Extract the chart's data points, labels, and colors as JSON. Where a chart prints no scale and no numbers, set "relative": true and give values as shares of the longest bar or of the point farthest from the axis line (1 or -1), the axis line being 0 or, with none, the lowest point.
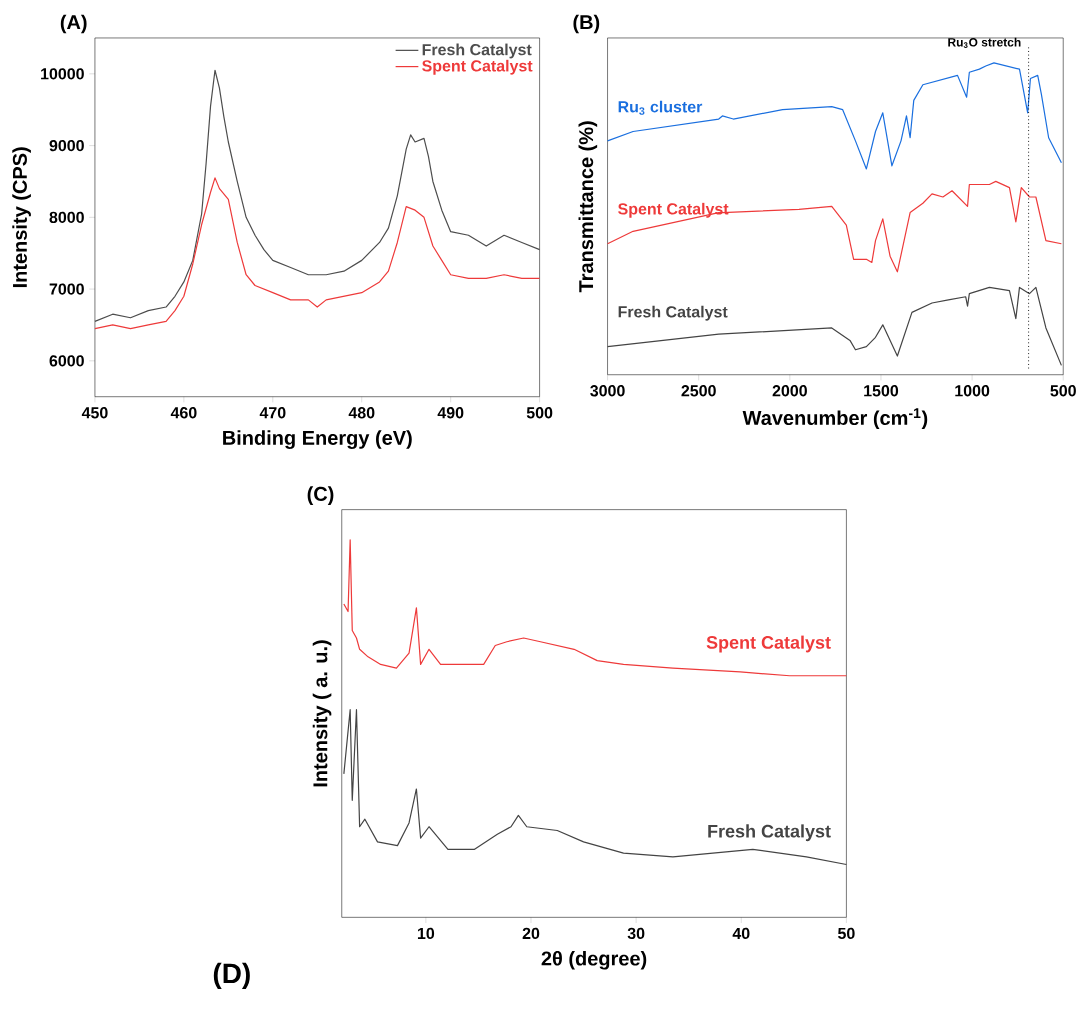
{
  "chart_data": [
    {
      "type": "line",
      "title": "(A)",
      "xlabel": "Binding Energy (eV)",
      "ylabel": "Intensity (CPS)",
      "xlim": [
        450,
        500
      ],
      "xticks": [
        450,
        460,
        470,
        480,
        490,
        500
      ],
      "ylim": [
        5500,
        10500
      ],
      "yticks": [
        6000,
        7000,
        8000,
        9000,
        10000
      ],
      "legend": "top right",
      "series": [
        {
          "name": "Fresh Catalyst",
          "color": "#4d4d4d",
          "x": [
            450,
            452,
            454,
            456,
            458,
            459,
            460,
            461,
            462,
            462.5,
            463,
            463.5,
            464,
            464.5,
            465,
            466,
            467,
            468,
            469,
            470,
            472,
            474,
            476,
            478,
            480,
            482,
            483,
            484,
            485,
            485.5,
            486,
            487,
            487.5,
            488,
            489,
            490,
            492,
            494,
            496,
            498,
            500
          ],
          "values": [
            6550,
            6650,
            6600,
            6700,
            6750,
            6900,
            7100,
            7400,
            8050,
            8750,
            9550,
            10050,
            9800,
            9400,
            9050,
            8500,
            8000,
            7750,
            7550,
            7400,
            7300,
            7200,
            7200,
            7250,
            7400,
            7650,
            7850,
            8300,
            8950,
            9150,
            9050,
            9100,
            8850,
            8500,
            8100,
            7800,
            7750,
            7600,
            7750,
            7650,
            7550
          ]
        },
        {
          "name": "Spent Catalyst",
          "color": "#ee3a3a",
          "x": [
            450,
            452,
            454,
            456,
            458,
            459,
            460,
            461,
            462,
            463,
            463.5,
            464,
            465,
            466,
            467,
            468,
            470,
            472,
            474,
            475,
            476,
            478,
            480,
            482,
            483,
            484,
            485,
            486,
            487,
            488,
            489,
            490,
            492,
            494,
            496,
            498,
            500
          ],
          "values": [
            6450,
            6500,
            6450,
            6500,
            6550,
            6700,
            6900,
            7350,
            7900,
            8350,
            8550,
            8400,
            8250,
            7650,
            7200,
            7050,
            6950,
            6850,
            6850,
            6750,
            6850,
            6900,
            6950,
            7100,
            7250,
            7650,
            8150,
            8100,
            8000,
            7600,
            7400,
            7200,
            7150,
            7150,
            7200,
            7150,
            7150
          ]
        }
      ]
    },
    {
      "type": "line",
      "title": "(B)",
      "xlabel": "Wavenumber (cm$^{-1}$)",
      "ylabel": "Transmittance (%)",
      "xlim": [
        3000,
        500
      ],
      "xticks": [
        3000,
        2500,
        2000,
        1500,
        1000,
        500
      ],
      "relative": true,
      "ref_lines": [
        {
          "axis": "x",
          "value": 690,
          "label": "Ru$_{3}$O stretch",
          "line_style": "dotted",
          "color": "#000000"
        }
      ],
      "series": [
        {
          "name": "Ru$_{3}$ cluster",
          "color": "#1a6fdf",
          "x": [
            3000,
            2860,
            2390,
            2370,
            2310,
            2040,
            1770,
            1710,
            1640,
            1580,
            1530,
            1490,
            1440,
            1390,
            1360,
            1340,
            1320,
            1270,
            1080,
            1030,
            1015,
            960,
            925,
            880,
            740,
            695,
            680,
            640,
            620,
            580,
            510
          ],
          "values": [
            0.75,
            0.78,
            0.82,
            0.83,
            0.82,
            0.85,
            0.86,
            0.85,
            0.75,
            0.66,
            0.78,
            0.84,
            0.67,
            0.75,
            0.83,
            0.76,
            0.88,
            0.93,
            0.96,
            0.89,
            0.97,
            0.98,
            0.99,
            1.0,
            0.98,
            0.84,
            0.95,
            0.96,
            0.9,
            0.76,
            0.68
          ]
        },
        {
          "name": "Spent Catalyst",
          "color": "#ee3a3a",
          "x": [
            3000,
            2860,
            2390,
            2370,
            1950,
            1770,
            1690,
            1650,
            1580,
            1550,
            1530,
            1490,
            1450,
            1410,
            1340,
            1270,
            1220,
            1160,
            1110,
            1025,
            1015,
            905,
            870,
            795,
            760,
            730,
            685,
            650,
            595,
            510
          ],
          "values": [
            0.42,
            0.46,
            0.52,
            0.52,
            0.53,
            0.54,
            0.48,
            0.37,
            0.37,
            0.36,
            0.43,
            0.5,
            0.38,
            0.33,
            0.52,
            0.55,
            0.58,
            0.57,
            0.59,
            0.54,
            0.61,
            0.61,
            0.62,
            0.6,
            0.49,
            0.6,
            0.57,
            0.57,
            0.43,
            0.42
          ]
        },
        {
          "name": "Fresh Catalyst",
          "color": "#444444",
          "x": [
            3000,
            2390,
            1770,
            1670,
            1640,
            1580,
            1530,
            1490,
            1450,
            1410,
            1330,
            1220,
            1130,
            1035,
            1025,
            1015,
            905,
            795,
            760,
            740,
            685,
            650,
            595,
            510
          ],
          "values": [
            0.09,
            0.13,
            0.15,
            0.11,
            0.08,
            0.09,
            0.12,
            0.16,
            0.11,
            0.06,
            0.2,
            0.23,
            0.24,
            0.25,
            0.22,
            0.26,
            0.28,
            0.27,
            0.18,
            0.28,
            0.26,
            0.28,
            0.15,
            0.03
          ]
        }
      ]
    },
    {
      "type": "line",
      "title": "(C)",
      "xlabel": "2θ (degree)",
      "ylabel": "Intensity ( a. u.)",
      "xlim": [
        2,
        50
      ],
      "xticks": [
        10,
        20,
        30,
        40,
        50
      ],
      "relative": true,
      "annotations": [
        "(D)"
      ],
      "series": [
        {
          "name": "Spent Catalyst",
          "color": "#ee3a3a",
          "x": [
            2.2,
            2.6,
            2.8,
            3.0,
            3.4,
            3.7,
            4.5,
            5.7,
            7.2,
            8.4,
            9.1,
            9.5,
            10.3,
            11.4,
            13,
            15.5,
            16.6,
            17.7,
            19.3,
            20.9,
            24.1,
            26.3,
            28.8,
            33.5,
            39.9,
            44.6,
            50
          ],
          "values": [
            0.83,
            0.81,
            1.0,
            0.76,
            0.74,
            0.71,
            0.69,
            0.67,
            0.66,
            0.7,
            0.82,
            0.67,
            0.71,
            0.67,
            0.67,
            0.67,
            0.72,
            0.73,
            0.74,
            0.73,
            0.71,
            0.68,
            0.67,
            0.66,
            0.65,
            0.64,
            0.64
          ]
        },
        {
          "name": "Fresh Catalyst",
          "color": "#444444",
          "x": [
            2.2,
            2.8,
            3.0,
            3.4,
            3.7,
            4.2,
            5.4,
            7.3,
            8.4,
            9.1,
            9.5,
            10.3,
            12.1,
            14.6,
            16.8,
            18.1,
            18.8,
            19.6,
            22.5,
            25,
            28.8,
            33.5,
            41.1,
            46.2,
            50
          ],
          "values": [
            0.38,
            0.55,
            0.31,
            0.55,
            0.24,
            0.26,
            0.2,
            0.19,
            0.25,
            0.34,
            0.21,
            0.24,
            0.18,
            0.18,
            0.22,
            0.24,
            0.27,
            0.24,
            0.23,
            0.2,
            0.17,
            0.16,
            0.18,
            0.16,
            0.14
          ]
        }
      ]
    }
  ]
}
